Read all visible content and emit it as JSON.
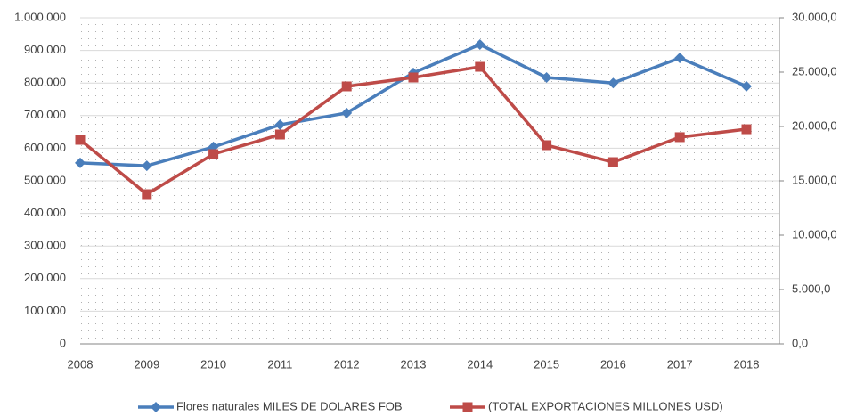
{
  "chart_data": {
    "type": "line",
    "categories": [
      "2008",
      "2009",
      "2010",
      "2011",
      "2012",
      "2013",
      "2014",
      "2015",
      "2016",
      "2017",
      "2018"
    ],
    "series": [
      {
        "name": "Flores naturales MILES DE DOLARES FOB",
        "color": "#4a7ebb",
        "marker": "diamond",
        "values": [
          555000,
          546000,
          604000,
          672000,
          708000,
          831000,
          918000,
          817000,
          800000,
          877000,
          790000
        ]
      },
      {
        "name": "(TOTAL EXPORTACIONES MILLONES USD)",
        "color": "#be4b48",
        "marker": "square",
        "axis": "y2",
        "values": [
          18770,
          13770,
          17460,
          19260,
          23690,
          24510,
          25490,
          18280,
          16720,
          19020,
          19750
        ]
      }
    ],
    "ylim": [
      0,
      1000000
    ],
    "yticks": [
      0,
      {
        "value": 100000,
        "label": "100.000"
      },
      {
        "value": 200000,
        "label": "200.000"
      },
      {
        "value": 300000,
        "label": "300.000"
      },
      {
        "value": 400000,
        "label": "400.000"
      },
      {
        "value": 500000,
        "label": "500.000"
      },
      {
        "value": 600000,
        "label": "600.000"
      },
      {
        "value": 700000,
        "label": "700.000"
      },
      {
        "value": 800000,
        "label": "800.000"
      },
      {
        "value": 900000,
        "label": "900.000"
      },
      {
        "value": 1000000,
        "label": "1.000.000"
      }
    ],
    "y2lim": [
      0,
      30000
    ],
    "y2ticks": [
      {
        "value": 0,
        "label": "0,0"
      },
      {
        "value": 5000,
        "label": "5.000,0"
      },
      {
        "value": 10000,
        "label": "10.000,0"
      },
      {
        "value": 15000,
        "label": "15.000,0"
      },
      {
        "value": 20000,
        "label": "20.000,0"
      },
      {
        "value": 25000,
        "label": "25.000,0"
      },
      {
        "value": 30000,
        "label": "30.000,0"
      }
    ],
    "grid": true,
    "legend": "bottom"
  }
}
